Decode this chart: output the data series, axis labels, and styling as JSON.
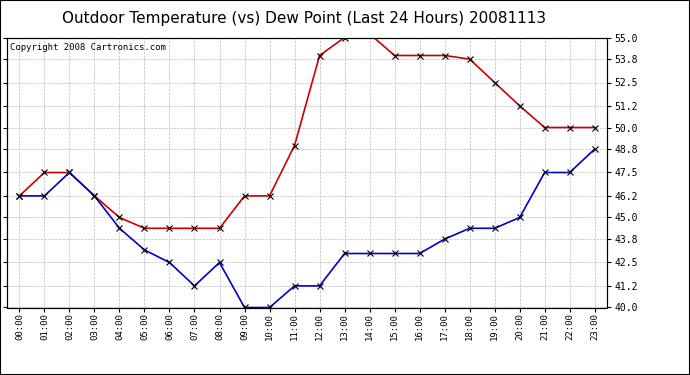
{
  "title": "Outdoor Temperature (vs) Dew Point (Last 24 Hours) 20081113",
  "copyright_text": "Copyright 2008 Cartronics.com",
  "hours": [
    "00:00",
    "01:00",
    "02:00",
    "03:00",
    "04:00",
    "05:00",
    "06:00",
    "07:00",
    "08:00",
    "09:00",
    "10:00",
    "11:00",
    "12:00",
    "13:00",
    "14:00",
    "15:00",
    "16:00",
    "17:00",
    "18:00",
    "19:00",
    "20:00",
    "21:00",
    "22:00",
    "23:00"
  ],
  "temp": [
    46.2,
    47.5,
    47.5,
    46.2,
    45.0,
    44.4,
    44.4,
    44.4,
    44.4,
    46.2,
    46.2,
    49.0,
    54.0,
    55.0,
    55.2,
    54.0,
    54.0,
    54.0,
    53.8,
    52.5,
    51.2,
    50.0,
    50.0,
    50.0
  ],
  "dew": [
    46.2,
    46.2,
    47.5,
    46.2,
    44.4,
    43.2,
    42.5,
    41.2,
    42.5,
    40.0,
    40.0,
    41.2,
    41.2,
    43.0,
    43.0,
    43.0,
    43.0,
    43.8,
    44.4,
    44.4,
    45.0,
    47.5,
    47.5,
    48.8
  ],
  "temp_color": "#cc0000",
  "dew_color": "#0000cc",
  "bg_color": "#ffffff",
  "grid_color": "#bbbbbb",
  "plot_bg": "#ffffff",
  "ylim_min": 40.0,
  "ylim_max": 55.0,
  "yticks": [
    40.0,
    41.2,
    42.5,
    43.8,
    45.0,
    46.2,
    47.5,
    48.8,
    50.0,
    51.2,
    52.5,
    53.8,
    55.0
  ],
  "title_fontsize": 11,
  "copyright_fontsize": 6.5,
  "markersize": 4,
  "linewidth": 1.2
}
